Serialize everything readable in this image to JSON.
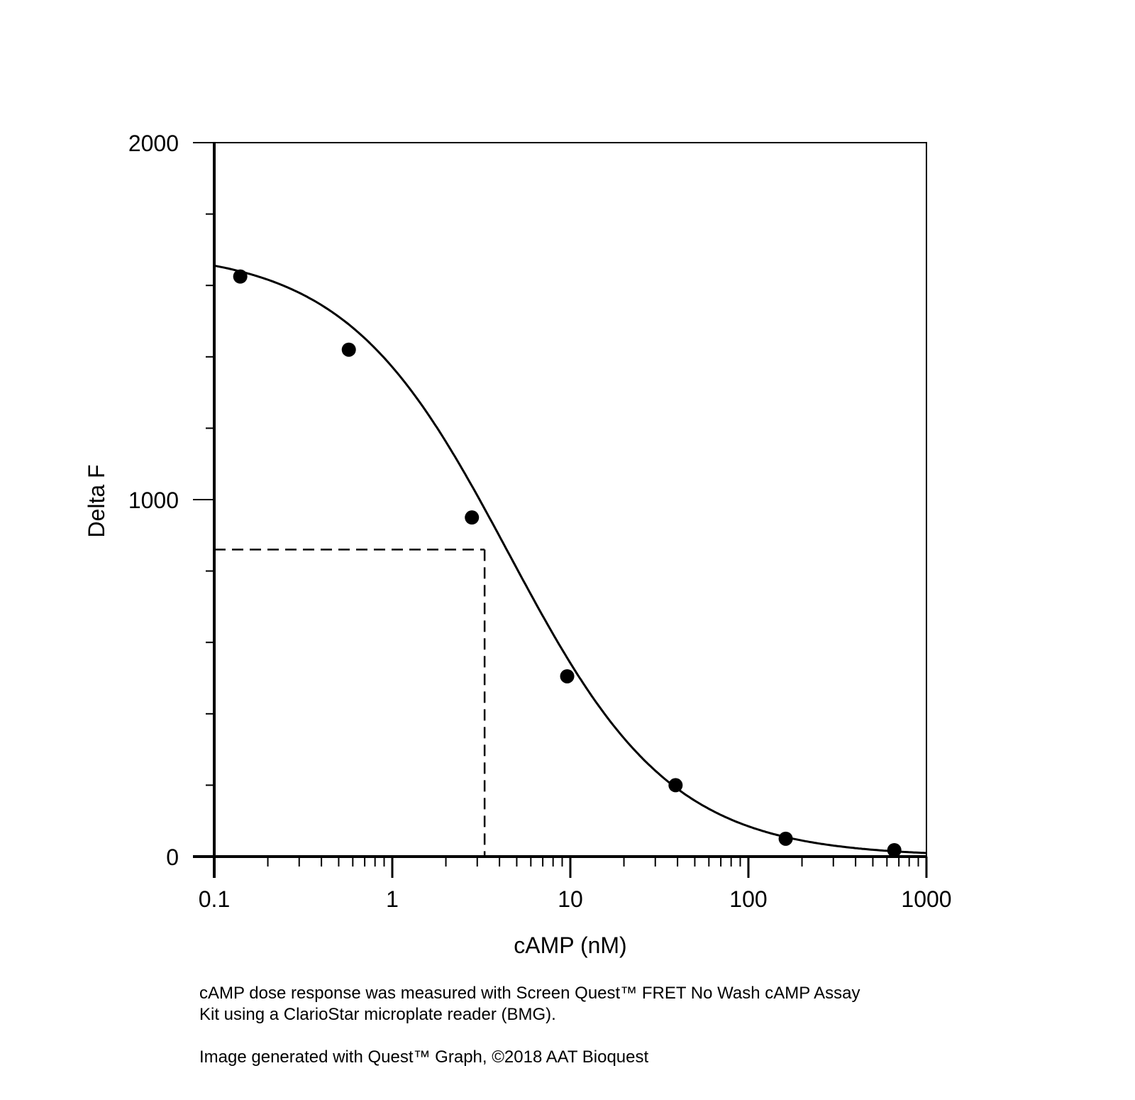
{
  "chart_data": {
    "type": "scatter",
    "xlabel": "cAMP (nM)",
    "ylabel": "Delta F",
    "x_scale": "log",
    "xlim": [
      0.1,
      1000
    ],
    "ylim": [
      0,
      2000
    ],
    "x_ticks": [
      "0.1",
      "1",
      "10",
      "100",
      "1000"
    ],
    "y_ticks": [
      "0",
      "1000",
      "2000"
    ],
    "grid": false,
    "series": [
      {
        "points": [
          {
            "x": 0.14,
            "y": 1625
          },
          {
            "x": 0.57,
            "y": 1420
          },
          {
            "x": 2.8,
            "y": 950
          },
          {
            "x": 9.6,
            "y": 505
          },
          {
            "x": 39,
            "y": 200
          },
          {
            "x": 162,
            "y": 50
          },
          {
            "x": 660,
            "y": 18
          }
        ],
        "fit_curve": {
          "model": "4PL",
          "top": 1700,
          "bottom": 0,
          "ec50": 4.5,
          "hill": 0.95
        }
      }
    ],
    "reference_point": {
      "x": 3.3,
      "y": 860
    }
  },
  "caption": {
    "line1": "cAMP dose response was measured with Screen Quest™ FRET No Wash cAMP Assay",
    "line2": "Kit using a ClarioStar microplate reader (BMG).",
    "credit": "Image generated with Quest™ Graph, ©2018 AAT Bioquest"
  }
}
